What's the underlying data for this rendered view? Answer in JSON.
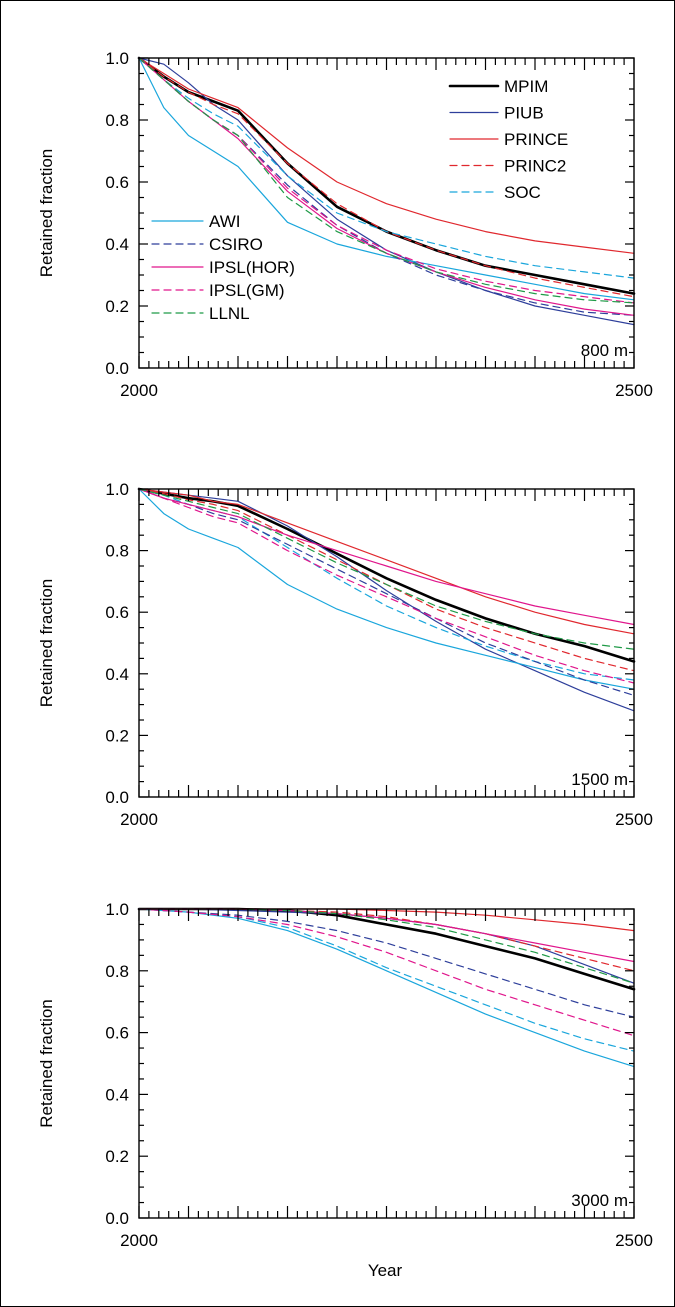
{
  "figure": {
    "xlabel": "Year",
    "ylabel": "Retained fraction",
    "legend_left": [
      "AWI",
      "CSIRO",
      "IPSL(HOR)",
      "IPSL(GM)",
      "LLNL"
    ],
    "legend_right": [
      "MPIM",
      "PIUB",
      "PRINCE",
      "PRINC2",
      "SOC"
    ]
  },
  "styles": {
    "MPIM": {
      "color": "#000000",
      "width": 2.6,
      "dash": ""
    },
    "PIUB": {
      "color": "#2e3f9b",
      "width": 1.2,
      "dash": ""
    },
    "PRINCE": {
      "color": "#e0282e",
      "width": 1.2,
      "dash": ""
    },
    "PRINC2": {
      "color": "#e0282e",
      "width": 1.2,
      "dash": "7 5"
    },
    "SOC": {
      "color": "#1aa6dc",
      "width": 1.2,
      "dash": "7 5"
    },
    "AWI": {
      "color": "#1aa6dc",
      "width": 1.2,
      "dash": ""
    },
    "CSIRO": {
      "color": "#2e3f9b",
      "width": 1.2,
      "dash": "7 5"
    },
    "IPSL(HOR)": {
      "color": "#e0168c",
      "width": 1.2,
      "dash": ""
    },
    "IPSL(GM)": {
      "color": "#e0168c",
      "width": 1.2,
      "dash": "7 5"
    },
    "LLNL": {
      "color": "#1f9a47",
      "width": 1.2,
      "dash": "7 5"
    }
  },
  "chart_data": [
    {
      "type": "line",
      "depth_label": "800 m",
      "x_ticks": [
        "2000",
        "2500"
      ],
      "y_ticks": [
        "0.0",
        "0.2",
        "0.4",
        "0.6",
        "0.8",
        "1.0"
      ],
      "xlim": [
        2000,
        2500
      ],
      "ylim": [
        0,
        1
      ],
      "x": [
        2000,
        2025,
        2050,
        2075,
        2100,
        2150,
        2200,
        2250,
        2300,
        2350,
        2400,
        2450,
        2500
      ],
      "series": [
        {
          "name": "MPIM",
          "values": [
            1.0,
            0.94,
            0.89,
            0.86,
            0.83,
            0.66,
            0.52,
            0.44,
            0.38,
            0.33,
            0.3,
            0.27,
            0.24
          ]
        },
        {
          "name": "PIUB",
          "values": [
            1.0,
            0.98,
            0.92,
            0.85,
            0.8,
            0.62,
            0.48,
            0.38,
            0.31,
            0.25,
            0.2,
            0.17,
            0.14
          ]
        },
        {
          "name": "PRINCE",
          "values": [
            1.0,
            0.95,
            0.9,
            0.87,
            0.84,
            0.71,
            0.6,
            0.53,
            0.48,
            0.44,
            0.41,
            0.39,
            0.37
          ]
        },
        {
          "name": "PRINC2",
          "values": [
            1.0,
            0.94,
            0.89,
            0.85,
            0.82,
            0.66,
            0.53,
            0.44,
            0.38,
            0.33,
            0.29,
            0.26,
            0.23
          ]
        },
        {
          "name": "SOC",
          "values": [
            1.0,
            0.93,
            0.87,
            0.82,
            0.78,
            0.62,
            0.5,
            0.44,
            0.4,
            0.36,
            0.33,
            0.31,
            0.29
          ]
        },
        {
          "name": "AWI",
          "values": [
            1.0,
            0.84,
            0.75,
            0.7,
            0.65,
            0.47,
            0.4,
            0.36,
            0.33,
            0.3,
            0.27,
            0.24,
            0.22
          ]
        },
        {
          "name": "CSIRO",
          "values": [
            1.0,
            0.93,
            0.86,
            0.8,
            0.75,
            0.59,
            0.46,
            0.37,
            0.3,
            0.25,
            0.21,
            0.18,
            0.17
          ]
        },
        {
          "name": "IPSL(HOR)",
          "values": [
            1.0,
            0.93,
            0.86,
            0.8,
            0.74,
            0.57,
            0.45,
            0.37,
            0.31,
            0.26,
            0.22,
            0.19,
            0.17
          ]
        },
        {
          "name": "IPSL(GM)",
          "values": [
            1.0,
            0.93,
            0.86,
            0.8,
            0.75,
            0.58,
            0.46,
            0.38,
            0.32,
            0.28,
            0.25,
            0.23,
            0.21
          ]
        },
        {
          "name": "LLNL",
          "values": [
            1.0,
            0.93,
            0.86,
            0.8,
            0.75,
            0.55,
            0.44,
            0.37,
            0.31,
            0.27,
            0.24,
            0.22,
            0.21
          ]
        }
      ]
    },
    {
      "type": "line",
      "depth_label": "1500 m",
      "x_ticks": [
        "2000",
        "2500"
      ],
      "y_ticks": [
        "0.0",
        "0.2",
        "0.4",
        "0.6",
        "0.8",
        "1.0"
      ],
      "xlim": [
        2000,
        2500
      ],
      "ylim": [
        0,
        1
      ],
      "x": [
        2000,
        2025,
        2050,
        2075,
        2100,
        2150,
        2200,
        2250,
        2300,
        2350,
        2400,
        2450,
        2500
      ],
      "series": [
        {
          "name": "MPIM",
          "values": [
            1.0,
            0.985,
            0.97,
            0.96,
            0.945,
            0.87,
            0.79,
            0.71,
            0.64,
            0.58,
            0.53,
            0.49,
            0.44
          ]
        },
        {
          "name": "PIUB",
          "values": [
            1.0,
            0.99,
            0.98,
            0.97,
            0.96,
            0.88,
            0.78,
            0.67,
            0.57,
            0.48,
            0.41,
            0.34,
            0.28
          ]
        },
        {
          "name": "PRINCE",
          "values": [
            1.0,
            0.99,
            0.98,
            0.96,
            0.95,
            0.89,
            0.83,
            0.77,
            0.71,
            0.65,
            0.6,
            0.56,
            0.53
          ]
        },
        {
          "name": "PRINC2",
          "values": [
            1.0,
            0.985,
            0.965,
            0.95,
            0.93,
            0.85,
            0.77,
            0.69,
            0.61,
            0.55,
            0.5,
            0.45,
            0.41
          ]
        },
        {
          "name": "SOC",
          "values": [
            1.0,
            0.98,
            0.95,
            0.93,
            0.91,
            0.81,
            0.71,
            0.62,
            0.55,
            0.49,
            0.44,
            0.4,
            0.38
          ]
        },
        {
          "name": "AWI",
          "values": [
            1.0,
            0.92,
            0.87,
            0.84,
            0.81,
            0.69,
            0.61,
            0.55,
            0.5,
            0.46,
            0.42,
            0.38,
            0.35
          ]
        },
        {
          "name": "CSIRO",
          "values": [
            1.0,
            0.97,
            0.95,
            0.92,
            0.9,
            0.82,
            0.74,
            0.66,
            0.58,
            0.5,
            0.44,
            0.38,
            0.33
          ]
        },
        {
          "name": "IPSL(HOR)",
          "values": [
            1.0,
            0.97,
            0.95,
            0.93,
            0.91,
            0.85,
            0.8,
            0.75,
            0.7,
            0.66,
            0.62,
            0.59,
            0.56
          ]
        },
        {
          "name": "IPSL(GM)",
          "values": [
            1.0,
            0.97,
            0.94,
            0.91,
            0.89,
            0.8,
            0.72,
            0.65,
            0.58,
            0.52,
            0.46,
            0.41,
            0.37
          ]
        },
        {
          "name": "LLNL",
          "values": [
            1.0,
            0.98,
            0.96,
            0.94,
            0.92,
            0.84,
            0.76,
            0.69,
            0.62,
            0.57,
            0.53,
            0.5,
            0.48
          ]
        }
      ]
    },
    {
      "type": "line",
      "depth_label": "3000 m",
      "x_ticks": [
        "2000",
        "2500"
      ],
      "y_ticks": [
        "0.0",
        "0.2",
        "0.4",
        "0.6",
        "0.8",
        "1.0"
      ],
      "xlim": [
        2000,
        2500
      ],
      "ylim": [
        0,
        1
      ],
      "x": [
        2000,
        2050,
        2100,
        2150,
        2200,
        2250,
        2300,
        2350,
        2400,
        2450,
        2500
      ],
      "series": [
        {
          "name": "MPIM",
          "values": [
            1.0,
            1.0,
            1.0,
            0.995,
            0.98,
            0.95,
            0.92,
            0.88,
            0.84,
            0.79,
            0.74
          ]
        },
        {
          "name": "PIUB",
          "values": [
            1.0,
            1.0,
            0.995,
            0.99,
            0.985,
            0.97,
            0.95,
            0.92,
            0.88,
            0.82,
            0.76
          ]
        },
        {
          "name": "PRINCE",
          "values": [
            1.0,
            1.0,
            1.0,
            1.0,
            1.0,
            0.995,
            0.99,
            0.98,
            0.965,
            0.95,
            0.93
          ]
        },
        {
          "name": "PRINC2",
          "values": [
            1.0,
            1.0,
            1.0,
            0.995,
            0.99,
            0.975,
            0.95,
            0.92,
            0.88,
            0.84,
            0.8
          ]
        },
        {
          "name": "SOC",
          "values": [
            1.0,
            0.99,
            0.975,
            0.94,
            0.88,
            0.81,
            0.75,
            0.69,
            0.63,
            0.58,
            0.54
          ]
        },
        {
          "name": "AWI",
          "values": [
            1.0,
            0.99,
            0.97,
            0.93,
            0.87,
            0.8,
            0.73,
            0.66,
            0.6,
            0.54,
            0.49
          ]
        },
        {
          "name": "CSIRO",
          "values": [
            1.0,
            0.99,
            0.98,
            0.96,
            0.93,
            0.89,
            0.84,
            0.79,
            0.74,
            0.69,
            0.65
          ]
        },
        {
          "name": "IPSL(HOR)",
          "values": [
            1.0,
            1.0,
            1.0,
            0.995,
            0.985,
            0.97,
            0.95,
            0.92,
            0.89,
            0.86,
            0.83
          ]
        },
        {
          "name": "IPSL(GM)",
          "values": [
            1.0,
            0.99,
            0.975,
            0.95,
            0.91,
            0.86,
            0.8,
            0.74,
            0.69,
            0.64,
            0.59
          ]
        },
        {
          "name": "LLNL",
          "values": [
            1.0,
            1.0,
            1.0,
            0.995,
            0.985,
            0.965,
            0.94,
            0.9,
            0.86,
            0.81,
            0.76
          ]
        }
      ]
    }
  ]
}
